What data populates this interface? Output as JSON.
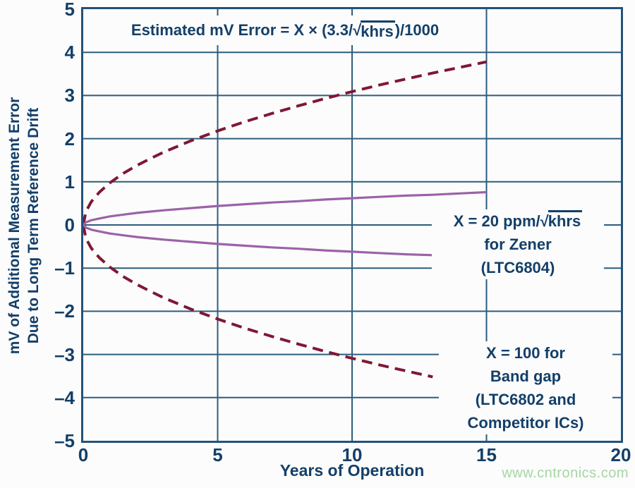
{
  "page": {
    "background": "#fcfcfc",
    "text_color": "#133f69",
    "grid_color": "#2d5d7d",
    "border_color": "#24527a"
  },
  "watermark": {
    "text": "www.cntronics.com",
    "color": "#a5d6a5"
  },
  "chart_data": {
    "type": "line",
    "title": "Estimated mV Error = X × (3.3/√khrs)/1000",
    "title_parts": {
      "pre": "Estimated mV Error = X × (3.3/",
      "sqrt": "khrs",
      "post": ")/1000"
    },
    "xlabel": "Years of Operation",
    "ylabel_line1": "mV of Additional Measurement Error",
    "ylabel_line2": "Due to Long Term Reference Drift",
    "xlim": [
      0,
      20
    ],
    "ylim": [
      -5,
      5
    ],
    "x_ticks": [
      0,
      5,
      10,
      15,
      20
    ],
    "x_tick_labels": [
      "0",
      "5",
      "10",
      "15",
      "20"
    ],
    "y_ticks": [
      5,
      4,
      3,
      2,
      1,
      0,
      -1,
      -2,
      -3,
      -4,
      -5
    ],
    "y_tick_labels": [
      "5",
      "4",
      "3",
      "2",
      "1",
      "0",
      "–1",
      "–2",
      "–3",
      "–4",
      "–5"
    ],
    "x_gridlines": [
      5,
      10,
      15
    ],
    "y_gridlines": [
      4,
      3,
      2,
      1,
      0,
      -1,
      -2,
      -3,
      -4
    ],
    "grid": true,
    "series": [
      {
        "name": "bandgap-upper-drift",
        "color": "#7f1834",
        "style": "dashed",
        "width": 4,
        "x": [
          0,
          0.1,
          0.3,
          0.6,
          1,
          1.5,
          2,
          2.5,
          3,
          4,
          5,
          6,
          7,
          8,
          9,
          10,
          11,
          12,
          13,
          14,
          15
        ],
        "y": [
          0,
          0.31,
          0.54,
          0.76,
          0.98,
          1.2,
          1.38,
          1.54,
          1.69,
          1.95,
          2.18,
          2.39,
          2.58,
          2.76,
          2.93,
          3.09,
          3.24,
          3.38,
          3.52,
          3.65,
          3.78
        ]
      },
      {
        "name": "bandgap-lower-drift",
        "color": "#7f1834",
        "style": "dashed",
        "width": 4,
        "x": [
          0,
          0.1,
          0.3,
          0.6,
          1,
          1.5,
          2,
          2.5,
          3,
          4,
          5,
          6,
          7,
          8,
          9,
          10,
          11,
          12,
          13
        ],
        "y": [
          0,
          -0.31,
          -0.54,
          -0.76,
          -0.98,
          -1.2,
          -1.38,
          -1.54,
          -1.69,
          -1.95,
          -2.18,
          -2.39,
          -2.58,
          -2.76,
          -2.93,
          -3.09,
          -3.24,
          -3.38,
          -3.52
        ]
      },
      {
        "name": "zener-upper-drift",
        "color": "#9c62a8",
        "style": "solid",
        "width": 3.2,
        "x": [
          0,
          0.1,
          0.3,
          0.6,
          1,
          1.5,
          2,
          2.5,
          3,
          4,
          5,
          6,
          7,
          8,
          9,
          10,
          11,
          12,
          13,
          14,
          15
        ],
        "y": [
          0,
          0.06,
          0.11,
          0.15,
          0.2,
          0.24,
          0.28,
          0.31,
          0.34,
          0.39,
          0.44,
          0.48,
          0.52,
          0.55,
          0.59,
          0.62,
          0.65,
          0.68,
          0.7,
          0.73,
          0.76
        ]
      },
      {
        "name": "zener-lower-drift",
        "color": "#9c62a8",
        "style": "solid",
        "width": 3.2,
        "x": [
          0,
          0.1,
          0.3,
          0.6,
          1,
          1.5,
          2,
          2.5,
          3,
          4,
          5,
          6,
          7,
          8,
          9,
          10,
          11,
          12,
          13
        ],
        "y": [
          0,
          -0.06,
          -0.11,
          -0.15,
          -0.2,
          -0.24,
          -0.28,
          -0.31,
          -0.34,
          -0.39,
          -0.44,
          -0.48,
          -0.52,
          -0.55,
          -0.59,
          -0.62,
          -0.65,
          -0.68,
          -0.7
        ]
      }
    ],
    "annotations": [
      {
        "name": "zener",
        "line1_pre": "X = 20 ppm/",
        "line1_sqrt": "khrs",
        "line2": "for Zener",
        "line3": "(LTC6804)"
      },
      {
        "name": "bandgap",
        "line1": "X = 100 for",
        "line2": "Band gap",
        "line3": "(LTC6802 and",
        "line4": "Competitor ICs)"
      }
    ]
  }
}
